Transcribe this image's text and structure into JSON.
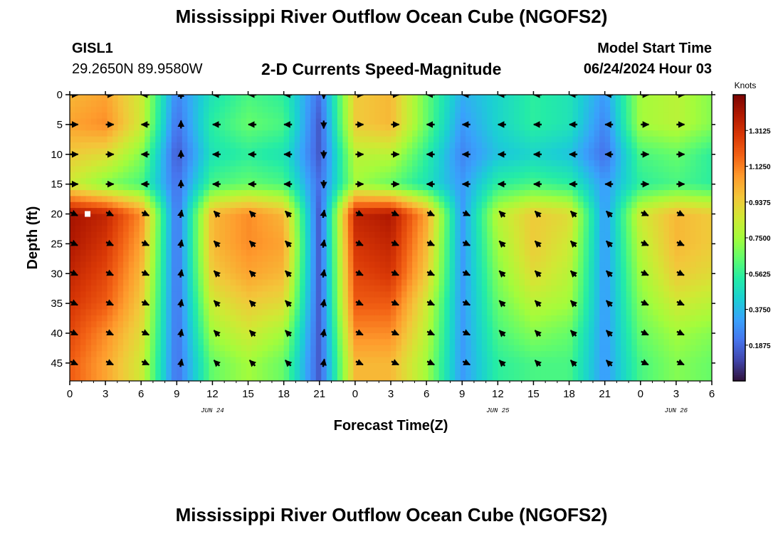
{
  "header": {
    "title": "Mississippi River Outflow Ocean Cube (NGOFS2)",
    "station": "GISL1",
    "coords": "29.2650N  89.9580W",
    "subtitle": "2-D Currents Speed-Magnitude",
    "model_start_label": "Model Start Time",
    "model_start_value": "06/24/2024 Hour 03"
  },
  "footer": {
    "title": "Mississippi River Outflow Ocean Cube (NGOFS2)"
  },
  "chart_data": {
    "type": "heatmap",
    "title": "2-D Currents Speed-Magnitude",
    "xlabel": "Forecast Time(Z)",
    "ylabel": "Depth (ft)",
    "x_hours_range": [
      0,
      54
    ],
    "x_tick_labels": [
      "0",
      "3",
      "6",
      "9",
      "12",
      "15",
      "18",
      "21",
      "0",
      "3",
      "6",
      "9",
      "12",
      "15",
      "18",
      "21",
      "0",
      "3",
      "6"
    ],
    "date_labels": [
      {
        "text": "JUN 24",
        "hour": 12
      },
      {
        "text": "JUN 25",
        "hour": 36
      },
      {
        "text": "JUN 26",
        "hour": 51
      }
    ],
    "y_ticks": [
      0,
      5,
      10,
      15,
      20,
      25,
      30,
      35,
      40,
      45
    ],
    "y_range": [
      0,
      48
    ],
    "y_inverted": true,
    "colorbar": {
      "unit": "Knots",
      "range": [
        0,
        1.5
      ],
      "ticks": [
        "1.3125",
        "1.1250",
        "0.9375",
        "0.7500",
        "0.5625",
        "0.3750",
        "0.1875"
      ],
      "tick_values": [
        1.3125,
        1.125,
        0.9375,
        0.75,
        0.5625,
        0.375,
        0.1875
      ],
      "colormap": [
        "#30123b",
        "#4145ab",
        "#4675ed",
        "#39a2fc",
        "#1bcfd4",
        "#24eca6",
        "#61fc6c",
        "#a4fc3b",
        "#d1e834",
        "#f3c63a",
        "#fe9b2d",
        "#f36315",
        "#d93806",
        "#b11901",
        "#7a0403"
      ]
    },
    "series": [
      {
        "depth_ft": 0,
        "speed_kn": [
          1.0,
          1.05,
          0.85,
          0.25,
          0.5,
          0.6,
          0.55,
          0.2,
          0.95,
          1.0,
          0.65,
          0.35,
          0.45,
          0.55,
          0.5,
          0.3,
          0.75,
          0.8,
          0.7
        ]
      },
      {
        "depth_ft": 5,
        "speed_kn": [
          1.05,
          1.1,
          0.85,
          0.2,
          0.55,
          0.65,
          0.6,
          0.15,
          0.95,
          1.0,
          0.65,
          0.3,
          0.45,
          0.55,
          0.5,
          0.25,
          0.75,
          0.8,
          0.7
        ]
      },
      {
        "depth_ft": 10,
        "speed_kn": [
          0.95,
          0.9,
          0.7,
          0.15,
          0.5,
          0.55,
          0.5,
          0.15,
          0.8,
          0.8,
          0.55,
          0.25,
          0.4,
          0.45,
          0.4,
          0.2,
          0.6,
          0.65,
          0.55
        ]
      },
      {
        "depth_ft": 15,
        "speed_kn": [
          0.85,
          0.7,
          0.6,
          0.2,
          0.6,
          0.65,
          0.6,
          0.2,
          0.75,
          0.65,
          0.5,
          0.3,
          0.55,
          0.6,
          0.55,
          0.3,
          0.55,
          0.6,
          0.55
        ]
      },
      {
        "depth_ft": 20,
        "speed_kn": [
          1.42,
          1.35,
          1.1,
          0.2,
          1.0,
          1.1,
          1.0,
          0.15,
          1.35,
          1.4,
          1.05,
          0.3,
          0.8,
          0.95,
          0.9,
          0.3,
          0.85,
          1.0,
          0.95
        ]
      },
      {
        "depth_ft": 25,
        "speed_kn": [
          1.4,
          1.3,
          1.05,
          0.2,
          1.0,
          1.1,
          1.05,
          0.15,
          1.3,
          1.35,
          1.0,
          0.3,
          0.75,
          0.95,
          0.85,
          0.3,
          0.8,
          1.0,
          0.95
        ]
      },
      {
        "depth_ft": 30,
        "speed_kn": [
          1.35,
          1.25,
          1.0,
          0.2,
          0.95,
          1.05,
          1.0,
          0.15,
          1.25,
          1.3,
          0.95,
          0.3,
          0.7,
          0.9,
          0.8,
          0.3,
          0.75,
          0.95,
          0.9
        ]
      },
      {
        "depth_ft": 35,
        "speed_kn": [
          1.3,
          1.2,
          0.95,
          0.2,
          0.85,
          0.95,
          0.9,
          0.15,
          1.2,
          1.2,
          0.85,
          0.3,
          0.65,
          0.8,
          0.75,
          0.3,
          0.7,
          0.85,
          0.8
        ]
      },
      {
        "depth_ft": 40,
        "speed_kn": [
          1.25,
          1.1,
          0.9,
          0.2,
          0.75,
          0.85,
          0.75,
          0.15,
          1.1,
          1.1,
          0.8,
          0.3,
          0.6,
          0.7,
          0.65,
          0.3,
          0.65,
          0.75,
          0.7
        ]
      },
      {
        "depth_ft": 45,
        "speed_kn": [
          1.2,
          1.05,
          0.85,
          0.2,
          0.65,
          0.75,
          0.65,
          0.15,
          1.0,
          1.0,
          0.75,
          0.3,
          0.55,
          0.6,
          0.6,
          0.3,
          0.6,
          0.7,
          0.65
        ]
      }
    ],
    "vector_direction_deg": [
      {
        "depth_range": "0-15",
        "dirs": [
          0,
          0,
          180,
          90,
          180,
          180,
          180,
          270,
          0,
          0,
          180,
          180,
          180,
          180,
          180,
          180,
          0,
          0,
          0
        ]
      },
      {
        "depth_range": "20-45",
        "dirs": [
          -25,
          -25,
          -25,
          80,
          135,
          135,
          135,
          80,
          -25,
          -25,
          -25,
          -25,
          135,
          135,
          135,
          135,
          -25,
          -25,
          -25
        ]
      }
    ],
    "marker": {
      "hour": 1.5,
      "depth_ft": 20
    }
  }
}
